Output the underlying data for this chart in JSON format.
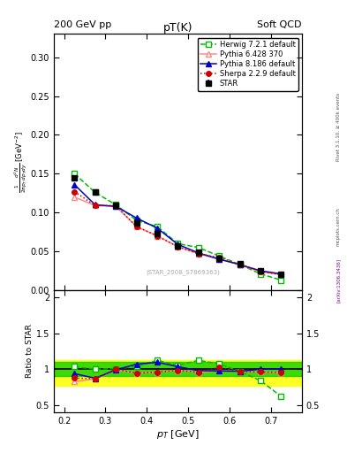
{
  "title_top_left": "200 GeV pp",
  "title_top_right": "Soft QCD",
  "plot_title": "pT(K)",
  "ylabel_main": "$\\frac{1}{2\\pi p_T}\\frac{d^2N}{dp_T dy}$ [GeV$^{-2}$]",
  "ylabel_ratio": "Ratio to STAR",
  "xlabel": "$p_T$ [GeV]",
  "right_label_top": "Rivet 3.1.10, ≥ 400k events",
  "right_label_bot": "[arXiv:1306.3436]",
  "mcplots_label": "mcplots.cern.ch",
  "watermark": "(STAR_2008_S7869363)",
  "star_x": [
    0.225,
    0.275,
    0.325,
    0.375,
    0.425,
    0.475,
    0.525,
    0.575,
    0.625,
    0.675,
    0.725
  ],
  "star_y": [
    0.145,
    0.126,
    0.109,
    0.087,
    0.073,
    0.057,
    0.049,
    0.041,
    0.034,
    0.025,
    0.021
  ],
  "star_yerr": [
    0.003,
    0.002,
    0.002,
    0.002,
    0.001,
    0.001,
    0.001,
    0.001,
    0.001,
    0.001,
    0.001
  ],
  "herwig_x": [
    0.225,
    0.275,
    0.325,
    0.375,
    0.425,
    0.475,
    0.525,
    0.575,
    0.625,
    0.675,
    0.725
  ],
  "herwig_y": [
    0.15,
    0.126,
    0.11,
    0.09,
    0.082,
    0.06,
    0.055,
    0.044,
    0.033,
    0.021,
    0.013
  ],
  "pythia6_x": [
    0.225,
    0.275,
    0.325,
    0.375,
    0.425,
    0.475,
    0.525,
    0.575,
    0.625,
    0.675,
    0.725
  ],
  "pythia6_y": [
    0.12,
    0.109,
    0.108,
    0.082,
    0.07,
    0.056,
    0.047,
    0.04,
    0.033,
    0.024,
    0.02
  ],
  "pythia8_x": [
    0.225,
    0.275,
    0.325,
    0.375,
    0.425,
    0.475,
    0.525,
    0.575,
    0.625,
    0.675,
    0.725
  ],
  "pythia8_y": [
    0.136,
    0.11,
    0.108,
    0.093,
    0.08,
    0.059,
    0.048,
    0.04,
    0.033,
    0.025,
    0.021
  ],
  "sherpa_x": [
    0.225,
    0.275,
    0.325,
    0.375,
    0.425,
    0.475,
    0.525,
    0.575,
    0.625,
    0.675,
    0.725
  ],
  "sherpa_y": [
    0.127,
    0.109,
    0.109,
    0.082,
    0.07,
    0.056,
    0.047,
    0.042,
    0.033,
    0.024,
    0.02
  ],
  "band_yellow_lo": 0.77,
  "band_yellow_hi": 1.13,
  "band_green_lo": 0.9,
  "band_green_hi": 1.1,
  "xlim": [
    0.175,
    0.775
  ],
  "ylim_main": [
    0.0,
    0.33
  ],
  "ylim_ratio": [
    0.4,
    2.1
  ],
  "star_color": "#000000",
  "herwig_color": "#00bb00",
  "pythia6_color": "#ff8888",
  "pythia8_color": "#0000cc",
  "sherpa_color": "#cc0000",
  "band_yellow": "#ffff00",
  "band_green": "#00cc00",
  "yticks_main": [
    0.0,
    0.05,
    0.1,
    0.15,
    0.2,
    0.25,
    0.3
  ],
  "yticks_ratio": [
    0.5,
    1.0,
    1.5,
    2.0
  ],
  "xticks": [
    0.2,
    0.3,
    0.4,
    0.5,
    0.6,
    0.7
  ]
}
